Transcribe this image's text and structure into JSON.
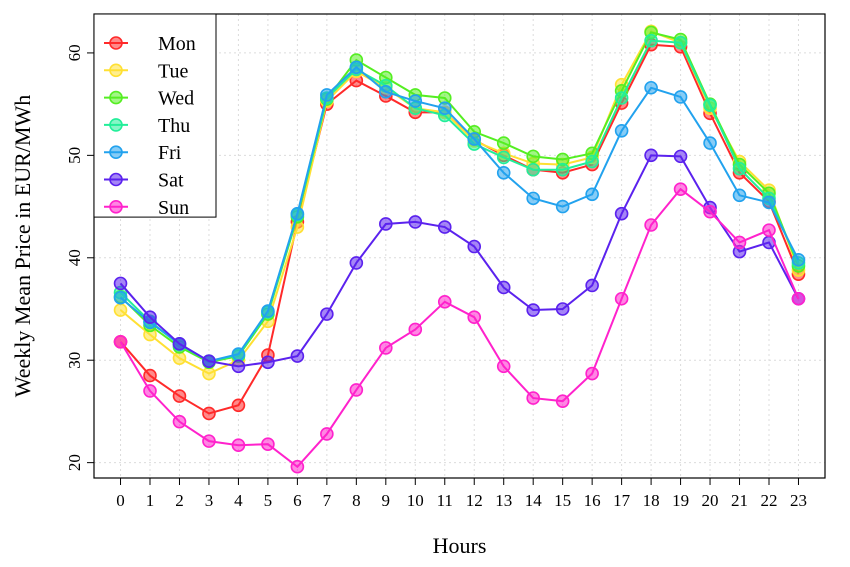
{
  "chart_data": {
    "type": "line",
    "xlabel": "Hours",
    "ylabel": "Weekly Mean Price in EUR/MWh",
    "x": [
      0,
      1,
      2,
      3,
      4,
      5,
      6,
      7,
      8,
      9,
      10,
      11,
      12,
      13,
      14,
      15,
      16,
      17,
      18,
      19,
      20,
      21,
      22,
      23
    ],
    "x_ticks": [
      "0",
      "1",
      "2",
      "3",
      "4",
      "5",
      "6",
      "7",
      "8",
      "9",
      "10",
      "11",
      "12",
      "13",
      "14",
      "15",
      "16",
      "17",
      "18",
      "19",
      "20",
      "21",
      "22",
      "23"
    ],
    "y_ticks": [
      "20",
      "30",
      "40",
      "50",
      "60"
    ],
    "xlim": [
      -0.9,
      23.9
    ],
    "ylim": [
      18.5,
      63.8
    ],
    "grid": true,
    "legend_position": "top-left",
    "series": [
      {
        "name": "Mon",
        "color": "#ff2a2a",
        "values": [
          31.8,
          28.5,
          26.5,
          24.8,
          25.6,
          30.5,
          43.5,
          55.0,
          57.3,
          55.8,
          54.2,
          54.2,
          51.5,
          50.0,
          48.6,
          48.3,
          49.1,
          55.1,
          60.8,
          60.6,
          54.1,
          48.3,
          45.5,
          38.4
        ]
      },
      {
        "name": "Tue",
        "color": "#ffe033",
        "values": [
          34.9,
          32.5,
          30.2,
          28.7,
          30.0,
          33.8,
          43.0,
          55.3,
          58.2,
          56.6,
          54.6,
          54.2,
          51.4,
          50.2,
          49.2,
          49.1,
          49.8,
          56.9,
          62.1,
          61.0,
          54.6,
          49.4,
          46.6,
          38.8
        ]
      },
      {
        "name": "Wed",
        "color": "#55ee22",
        "values": [
          36.2,
          33.4,
          31.3,
          29.8,
          30.4,
          34.5,
          44.0,
          55.5,
          59.3,
          57.6,
          55.9,
          55.6,
          52.3,
          51.2,
          49.9,
          49.6,
          50.2,
          56.3,
          62.0,
          61.3,
          55.0,
          49.1,
          46.3,
          39.2
        ]
      },
      {
        "name": "Thu",
        "color": "#22ee99",
        "values": [
          36.6,
          33.8,
          31.5,
          29.9,
          30.5,
          34.7,
          44.2,
          55.6,
          58.4,
          56.8,
          54.6,
          53.9,
          51.1,
          49.8,
          48.6,
          48.6,
          49.4,
          55.6,
          61.2,
          61.0,
          54.9,
          48.7,
          45.8,
          39.5
        ]
      },
      {
        "name": "Fri",
        "color": "#22a2ee",
        "values": [
          36.1,
          33.7,
          31.6,
          29.9,
          30.6,
          34.8,
          44.3,
          55.9,
          58.6,
          56.2,
          55.3,
          54.6,
          51.6,
          48.3,
          45.8,
          45.0,
          46.2,
          52.4,
          56.6,
          55.7,
          51.2,
          46.1,
          45.4,
          39.8
        ]
      },
      {
        "name": "Sat",
        "color": "#5b22ee",
        "values": [
          37.5,
          34.2,
          31.6,
          29.9,
          29.4,
          29.8,
          30.4,
          34.5,
          39.5,
          43.3,
          43.5,
          43.0,
          41.1,
          37.1,
          34.9,
          35.0,
          37.3,
          44.3,
          50.0,
          49.9,
          44.9,
          40.6,
          41.5,
          36.0
        ]
      },
      {
        "name": "Sun",
        "color": "#ff22cc",
        "values": [
          31.8,
          27.0,
          24.0,
          22.1,
          21.7,
          21.8,
          19.6,
          22.8,
          27.1,
          31.2,
          33.0,
          35.7,
          34.2,
          29.4,
          26.3,
          26.0,
          28.7,
          36.0,
          43.2,
          46.7,
          44.5,
          41.5,
          42.7,
          36.0
        ]
      }
    ]
  }
}
